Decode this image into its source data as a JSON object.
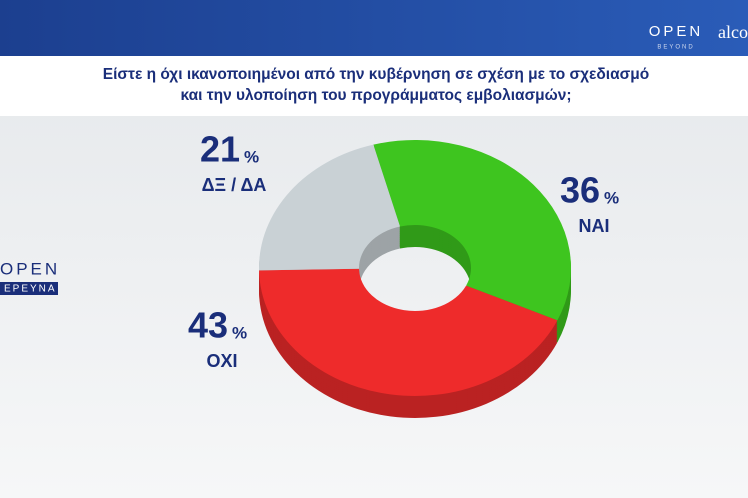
{
  "branding": {
    "top_logo": "OPEN",
    "top_logo_sub": "BEYOND",
    "partner_logo": "alco",
    "side_logo": "OPEN",
    "side_logo_sub": "ΕΡΕΥΝΑ"
  },
  "chart_data": {
    "type": "donut",
    "title": [
      "Είστε η όχι ικανοποιημένοι από την κυβέρνηση σε σχέση με το σχεδιασμό",
      "και την υλοποίηση του προγράμματος εμβολιασμών;"
    ],
    "categories": [
      "ΝΑΙ",
      "ΟΧΙ",
      "ΔΞ / ΔΑ"
    ],
    "values": [
      36,
      43,
      21
    ],
    "unit": "%",
    "colors": [
      "#3ec51f",
      "#ee2b2b",
      "#c9d1d5"
    ]
  }
}
